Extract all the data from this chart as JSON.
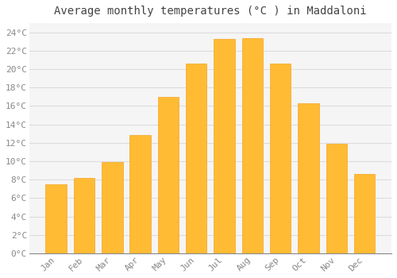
{
  "title": "Average monthly temperatures (°C ) in Maddaloni",
  "months": [
    "Jan",
    "Feb",
    "Mar",
    "Apr",
    "May",
    "Jun",
    "Jul",
    "Aug",
    "Sep",
    "Oct",
    "Nov",
    "Dec"
  ],
  "temperatures": [
    7.5,
    8.2,
    9.9,
    12.8,
    17.0,
    20.6,
    23.3,
    23.4,
    20.6,
    16.3,
    11.9,
    8.6
  ],
  "bar_color": "#FFBB33",
  "bar_edge_color": "#F5A623",
  "background_color": "#FFFFFF",
  "plot_bg_color": "#F5F5F5",
  "grid_color": "#DDDDDD",
  "title_color": "#444444",
  "tick_label_color": "#888888",
  "ylim": [
    0,
    25
  ],
  "yticks": [
    0,
    2,
    4,
    6,
    8,
    10,
    12,
    14,
    16,
    18,
    20,
    22,
    24
  ],
  "title_fontsize": 10,
  "tick_fontsize": 8,
  "bar_width": 0.75
}
